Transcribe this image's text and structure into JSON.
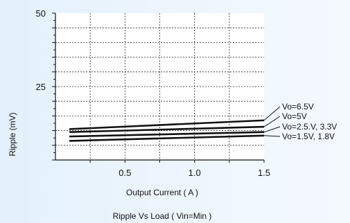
{
  "chart_data": {
    "type": "line",
    "title": "Ripple  Vs Load ( Vin=Min )",
    "xlabel": "Output Current ( A )",
    "ylabel": "Ripple (mV)",
    "xlim": [
      0,
      1.5
    ],
    "ylim": [
      0,
      50
    ],
    "x_ticks": [
      "0.5",
      "1.0",
      "1.5"
    ],
    "x_tick_values": [
      0.5,
      1.0,
      1.5
    ],
    "y_ticks": [
      "25",
      "50"
    ],
    "y_tick_values": [
      25,
      50
    ],
    "grid": true,
    "legend": "right, labels at line ends",
    "line_color": "#111111",
    "series": [
      {
        "name": "Vo=6.5V",
        "x": [
          0.1,
          1.5
        ],
        "y": [
          10.5,
          13.5
        ]
      },
      {
        "name": "Vo=5V",
        "x": [
          0.1,
          1.5
        ],
        "y": [
          9.5,
          11.3
        ]
      },
      {
        "name": "Vo=2.5.V, 3.3V",
        "x": [
          0.1,
          1.5
        ],
        "y": [
          8.0,
          9.5
        ]
      },
      {
        "name": "Vo=1.5V, 1.8V",
        "x": [
          0.1,
          1.5
        ],
        "y": [
          6.5,
          8.3
        ]
      }
    ]
  }
}
